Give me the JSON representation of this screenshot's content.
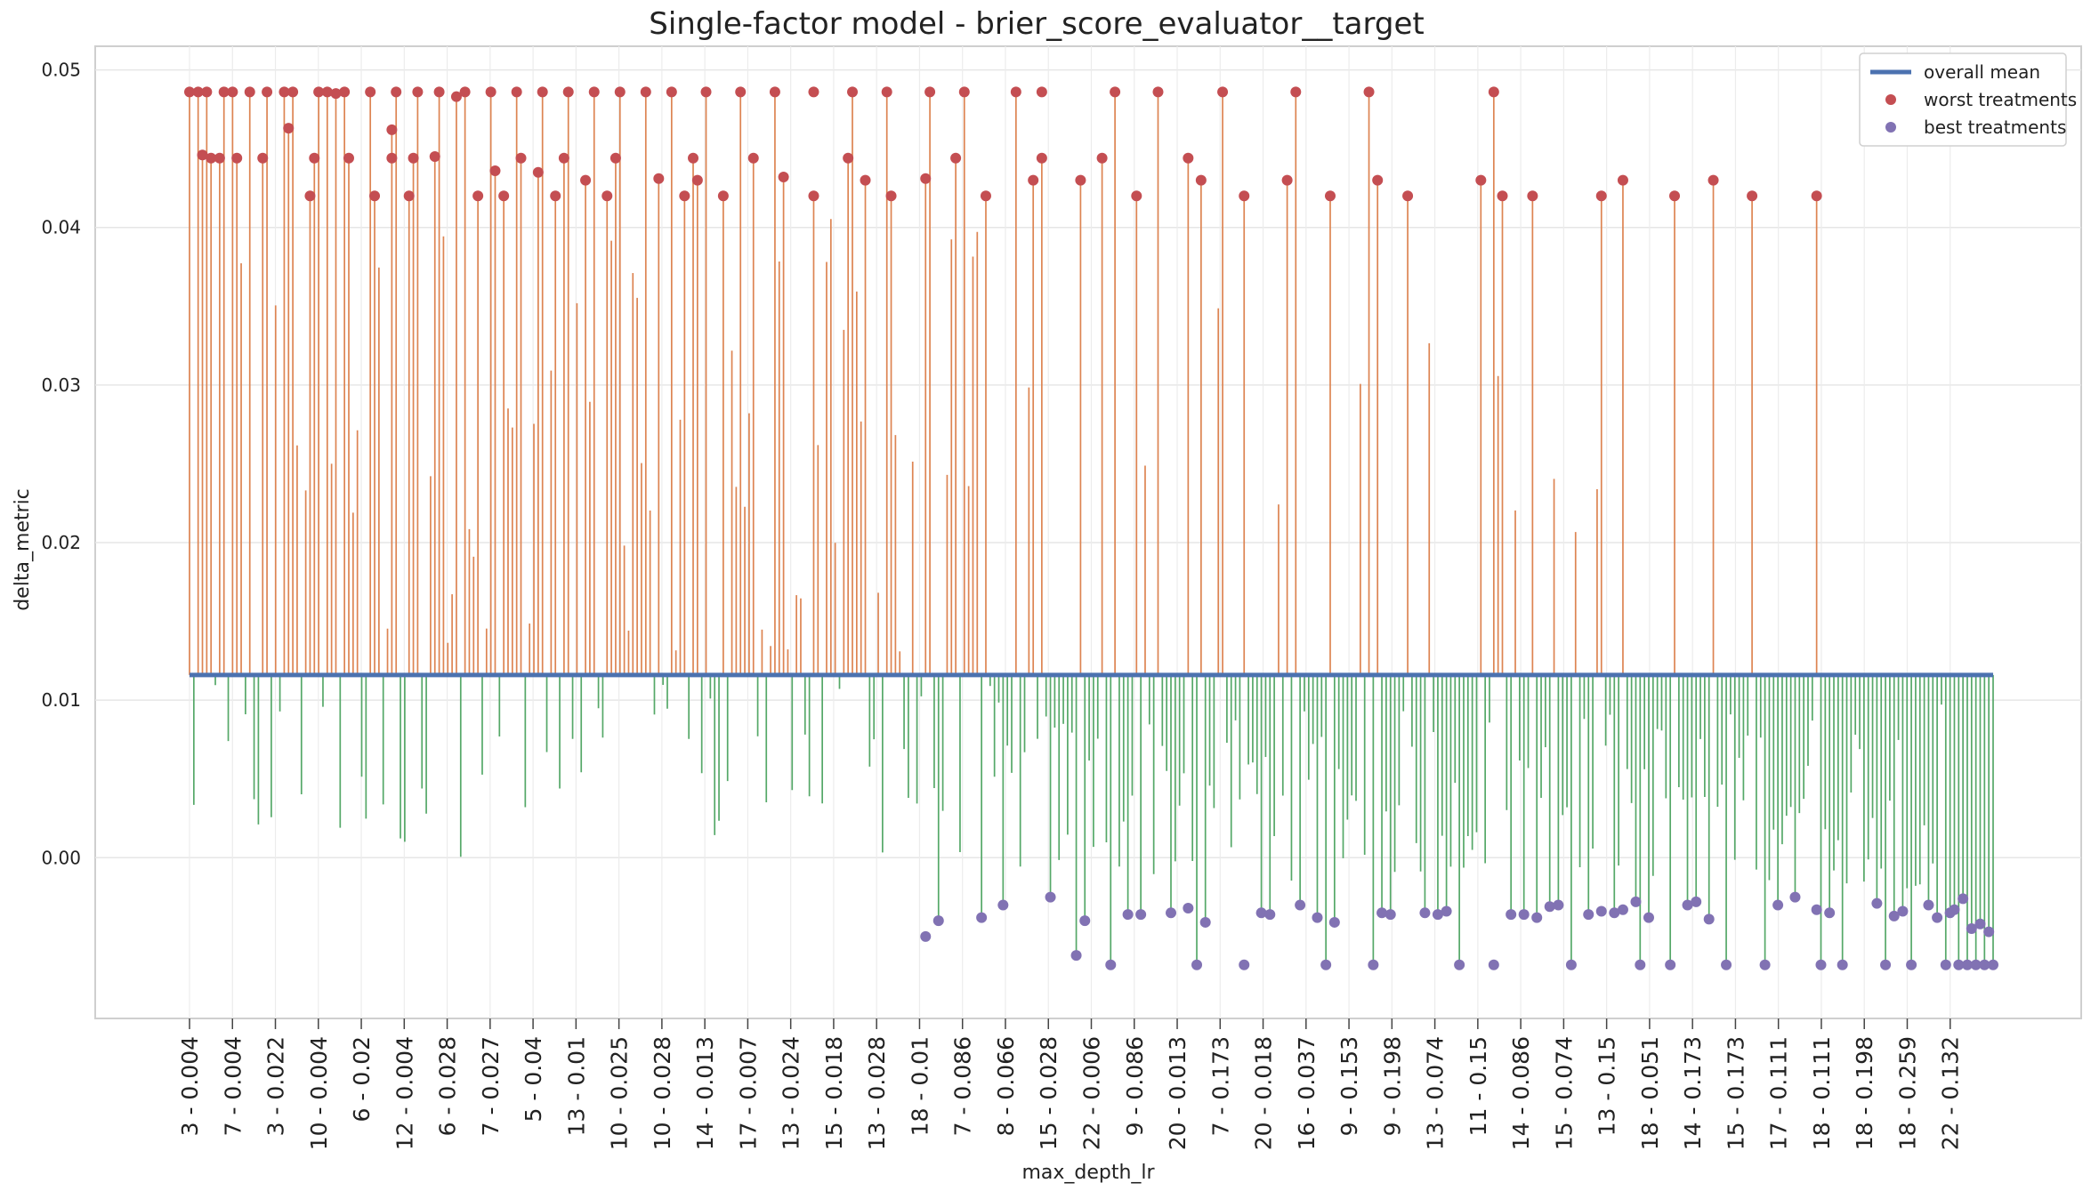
{
  "chart_data": {
    "type": "bar",
    "title": "Single-factor model - brier_score_evaluator__target",
    "xlabel": "max_depth_lr",
    "ylabel": "delta_metric",
    "ylim": [
      -0.0102,
      0.0515
    ],
    "yticks": [
      0.0,
      0.01,
      0.02,
      0.03,
      0.04,
      0.05
    ],
    "ytick_labels": [
      "0.00",
      "0.01",
      "0.02",
      "0.03",
      "0.04",
      "0.05"
    ],
    "grid": true,
    "overall_mean": 0.0116,
    "legend": {
      "placement": "top-right",
      "entries": [
        {
          "label": "overall mean",
          "kind": "line",
          "color": "#4c72b0"
        },
        {
          "label": "worst treatments",
          "kind": "dot",
          "color": "#c44e52"
        },
        {
          "label": "best treatments",
          "kind": "dot",
          "color": "#8172b3"
        }
      ]
    },
    "colors": {
      "above_mean": "#dd8452",
      "below_mean": "#55a868",
      "mean_line": "#4c72b0",
      "worst": "#c44e52",
      "best": "#8172b3"
    },
    "x_categories": [
      "3 - 0.004",
      "7 - 0.004",
      "3 - 0.022",
      "10 - 0.004",
      "6 - 0.02",
      "12 - 0.004",
      "6 - 0.028",
      "7 - 0.027",
      "5 - 0.04",
      "13 - 0.01",
      "10 - 0.025",
      "10 - 0.028",
      "14 - 0.013",
      "17 - 0.007",
      "13 - 0.024",
      "15 - 0.018",
      "13 - 0.028",
      "18 - 0.01",
      "7 - 0.086",
      "8 - 0.066",
      "15 - 0.028",
      "22 - 0.006",
      "9 - 0.086",
      "20 - 0.013",
      "7 - 0.173",
      "20 - 0.018",
      "16 - 0.037",
      "9 - 0.153",
      "9 - 0.198",
      "13 - 0.074",
      "11 - 0.15",
      "14 - 0.086",
      "15 - 0.074",
      "13 - 0.15",
      "18 - 0.051",
      "14 - 0.173",
      "15 - 0.173",
      "17 - 0.111",
      "18 - 0.111",
      "18 - 0.198",
      "18 - 0.259",
      "22 - 0.132"
    ],
    "n_treatments": 420,
    "worst_treatments": [
      {
        "index": 0,
        "value": 0.0486
      },
      {
        "index": 2,
        "value": 0.0486
      },
      {
        "index": 4,
        "value": 0.0486
      },
      {
        "index": 8,
        "value": 0.0486
      },
      {
        "index": 10,
        "value": 0.0486
      },
      {
        "index": 14,
        "value": 0.0486
      },
      {
        "index": 18,
        "value": 0.0486
      },
      {
        "index": 22,
        "value": 0.0486
      },
      {
        "index": 24,
        "value": 0.0486
      },
      {
        "index": 30,
        "value": 0.0486
      },
      {
        "index": 32,
        "value": 0.0486
      },
      {
        "index": 36,
        "value": 0.0486
      },
      {
        "index": 42,
        "value": 0.0486
      },
      {
        "index": 48,
        "value": 0.0486
      },
      {
        "index": 53,
        "value": 0.0486
      },
      {
        "index": 58,
        "value": 0.0486
      },
      {
        "index": 64,
        "value": 0.0486
      },
      {
        "index": 70,
        "value": 0.0486
      },
      {
        "index": 76,
        "value": 0.0486
      },
      {
        "index": 82,
        "value": 0.0486
      },
      {
        "index": 88,
        "value": 0.0486
      },
      {
        "index": 94,
        "value": 0.0486
      },
      {
        "index": 100,
        "value": 0.0486
      },
      {
        "index": 106,
        "value": 0.0486
      },
      {
        "index": 112,
        "value": 0.0486
      },
      {
        "index": 120,
        "value": 0.0486
      },
      {
        "index": 128,
        "value": 0.0486
      },
      {
        "index": 136,
        "value": 0.0486
      },
      {
        "index": 145,
        "value": 0.0486
      },
      {
        "index": 154,
        "value": 0.0486
      },
      {
        "index": 162,
        "value": 0.0486
      },
      {
        "index": 172,
        "value": 0.0486
      },
      {
        "index": 180,
        "value": 0.0486
      },
      {
        "index": 192,
        "value": 0.0486
      },
      {
        "index": 198,
        "value": 0.0486
      },
      {
        "index": 215,
        "value": 0.0486
      },
      {
        "index": 225,
        "value": 0.0486
      },
      {
        "index": 240,
        "value": 0.0486
      },
      {
        "index": 257,
        "value": 0.0486
      },
      {
        "index": 274,
        "value": 0.0486
      },
      {
        "index": 303,
        "value": 0.0486
      },
      {
        "index": 3,
        "value": 0.0446
      },
      {
        "index": 5,
        "value": 0.0444
      },
      {
        "index": 7,
        "value": 0.0444
      },
      {
        "index": 11,
        "value": 0.0444
      },
      {
        "index": 17,
        "value": 0.0444
      },
      {
        "index": 23,
        "value": 0.0463
      },
      {
        "index": 29,
        "value": 0.0444
      },
      {
        "index": 37,
        "value": 0.0444
      },
      {
        "index": 47,
        "value": 0.0444
      },
      {
        "index": 52,
        "value": 0.0444
      },
      {
        "index": 57,
        "value": 0.0445
      },
      {
        "index": 77,
        "value": 0.0444
      },
      {
        "index": 87,
        "value": 0.0444
      },
      {
        "index": 99,
        "value": 0.0444
      },
      {
        "index": 117,
        "value": 0.0444
      },
      {
        "index": 131,
        "value": 0.0444
      },
      {
        "index": 153,
        "value": 0.0444
      },
      {
        "index": 178,
        "value": 0.0444
      },
      {
        "index": 198,
        "value": 0.0444
      },
      {
        "index": 212,
        "value": 0.0444
      },
      {
        "index": 232,
        "value": 0.0444
      },
      {
        "index": 62,
        "value": 0.0483
      },
      {
        "index": 34,
        "value": 0.0485
      },
      {
        "index": 47,
        "value": 0.0462
      },
      {
        "index": 71,
        "value": 0.0436
      },
      {
        "index": 81,
        "value": 0.0435
      },
      {
        "index": 118,
        "value": 0.043
      },
      {
        "index": 28,
        "value": 0.042
      },
      {
        "index": 43,
        "value": 0.042
      },
      {
        "index": 51,
        "value": 0.042
      },
      {
        "index": 67,
        "value": 0.042
      },
      {
        "index": 73,
        "value": 0.042
      },
      {
        "index": 85,
        "value": 0.042
      },
      {
        "index": 92,
        "value": 0.043
      },
      {
        "index": 97,
        "value": 0.042
      },
      {
        "index": 109,
        "value": 0.0431
      },
      {
        "index": 115,
        "value": 0.042
      },
      {
        "index": 124,
        "value": 0.042
      },
      {
        "index": 138,
        "value": 0.0432
      },
      {
        "index": 145,
        "value": 0.042
      },
      {
        "index": 157,
        "value": 0.043
      },
      {
        "index": 163,
        "value": 0.042
      },
      {
        "index": 171,
        "value": 0.0431
      },
      {
        "index": 185,
        "value": 0.042
      },
      {
        "index": 196,
        "value": 0.043
      },
      {
        "index": 207,
        "value": 0.043
      },
      {
        "index": 220,
        "value": 0.042
      },
      {
        "index": 235,
        "value": 0.043
      },
      {
        "index": 245,
        "value": 0.042
      },
      {
        "index": 255,
        "value": 0.043
      },
      {
        "index": 265,
        "value": 0.042
      },
      {
        "index": 276,
        "value": 0.043
      },
      {
        "index": 283,
        "value": 0.042
      },
      {
        "index": 300,
        "value": 0.043
      },
      {
        "index": 305,
        "value": 0.042
      },
      {
        "index": 312,
        "value": 0.042
      },
      {
        "index": 328,
        "value": 0.042
      },
      {
        "index": 333,
        "value": 0.043
      },
      {
        "index": 345,
        "value": 0.042
      },
      {
        "index": 354,
        "value": 0.043
      },
      {
        "index": 363,
        "value": 0.042
      },
      {
        "index": 378,
        "value": 0.042
      }
    ],
    "best_treatments": [
      {
        "index": 171,
        "value": -0.005
      },
      {
        "index": 174,
        "value": -0.004
      },
      {
        "index": 184,
        "value": -0.0038
      },
      {
        "index": 189,
        "value": -0.003
      },
      {
        "index": 200,
        "value": -0.0025
      },
      {
        "index": 206,
        "value": -0.0062
      },
      {
        "index": 208,
        "value": -0.004
      },
      {
        "index": 214,
        "value": -0.0068
      },
      {
        "index": 218,
        "value": -0.0036
      },
      {
        "index": 221,
        "value": -0.0036
      },
      {
        "index": 228,
        "value": -0.0035
      },
      {
        "index": 232,
        "value": -0.0032
      },
      {
        "index": 234,
        "value": -0.0068
      },
      {
        "index": 236,
        "value": -0.0041
      },
      {
        "index": 245,
        "value": -0.0068
      },
      {
        "index": 249,
        "value": -0.0035
      },
      {
        "index": 251,
        "value": -0.0036
      },
      {
        "index": 258,
        "value": -0.003
      },
      {
        "index": 262,
        "value": -0.0038
      },
      {
        "index": 264,
        "value": -0.0068
      },
      {
        "index": 266,
        "value": -0.0041
      },
      {
        "index": 275,
        "value": -0.0068
      },
      {
        "index": 277,
        "value": -0.0035
      },
      {
        "index": 279,
        "value": -0.0036
      },
      {
        "index": 287,
        "value": -0.0035
      },
      {
        "index": 290,
        "value": -0.0036
      },
      {
        "index": 292,
        "value": -0.0034
      },
      {
        "index": 295,
        "value": -0.0068
      },
      {
        "index": 303,
        "value": -0.0068
      },
      {
        "index": 307,
        "value": -0.0036
      },
      {
        "index": 310,
        "value": -0.0036
      },
      {
        "index": 313,
        "value": -0.0038
      },
      {
        "index": 316,
        "value": -0.0031
      },
      {
        "index": 318,
        "value": -0.003
      },
      {
        "index": 321,
        "value": -0.0068
      },
      {
        "index": 325,
        "value": -0.0036
      },
      {
        "index": 328,
        "value": -0.0034
      },
      {
        "index": 331,
        "value": -0.0035
      },
      {
        "index": 333,
        "value": -0.0033
      },
      {
        "index": 336,
        "value": -0.0028
      },
      {
        "index": 337,
        "value": -0.0068
      },
      {
        "index": 339,
        "value": -0.0038
      },
      {
        "index": 344,
        "value": -0.0068
      },
      {
        "index": 348,
        "value": -0.003
      },
      {
        "index": 350,
        "value": -0.0028
      },
      {
        "index": 353,
        "value": -0.0039
      },
      {
        "index": 357,
        "value": -0.0068
      },
      {
        "index": 366,
        "value": -0.0068
      },
      {
        "index": 369,
        "value": -0.003
      },
      {
        "index": 373,
        "value": -0.0025
      },
      {
        "index": 378,
        "value": -0.0033
      },
      {
        "index": 379,
        "value": -0.0068
      },
      {
        "index": 381,
        "value": -0.0035
      },
      {
        "index": 384,
        "value": -0.0068
      },
      {
        "index": 392,
        "value": -0.0029
      },
      {
        "index": 394,
        "value": -0.0068
      },
      {
        "index": 396,
        "value": -0.0037
      },
      {
        "index": 398,
        "value": -0.0034
      },
      {
        "index": 400,
        "value": -0.0068
      },
      {
        "index": 404,
        "value": -0.003
      },
      {
        "index": 406,
        "value": -0.0038
      },
      {
        "index": 408,
        "value": -0.0068
      },
      {
        "index": 409,
        "value": -0.0035
      },
      {
        "index": 410,
        "value": -0.0033
      },
      {
        "index": 411,
        "value": -0.0068
      },
      {
        "index": 412,
        "value": -0.0026
      },
      {
        "index": 413,
        "value": -0.0068
      },
      {
        "index": 414,
        "value": -0.0045
      },
      {
        "index": 415,
        "value": -0.0068
      },
      {
        "index": 416,
        "value": -0.0042
      },
      {
        "index": 417,
        "value": -0.0068
      },
      {
        "index": 418,
        "value": -0.0047
      },
      {
        "index": 419,
        "value": -0.0068
      }
    ]
  }
}
